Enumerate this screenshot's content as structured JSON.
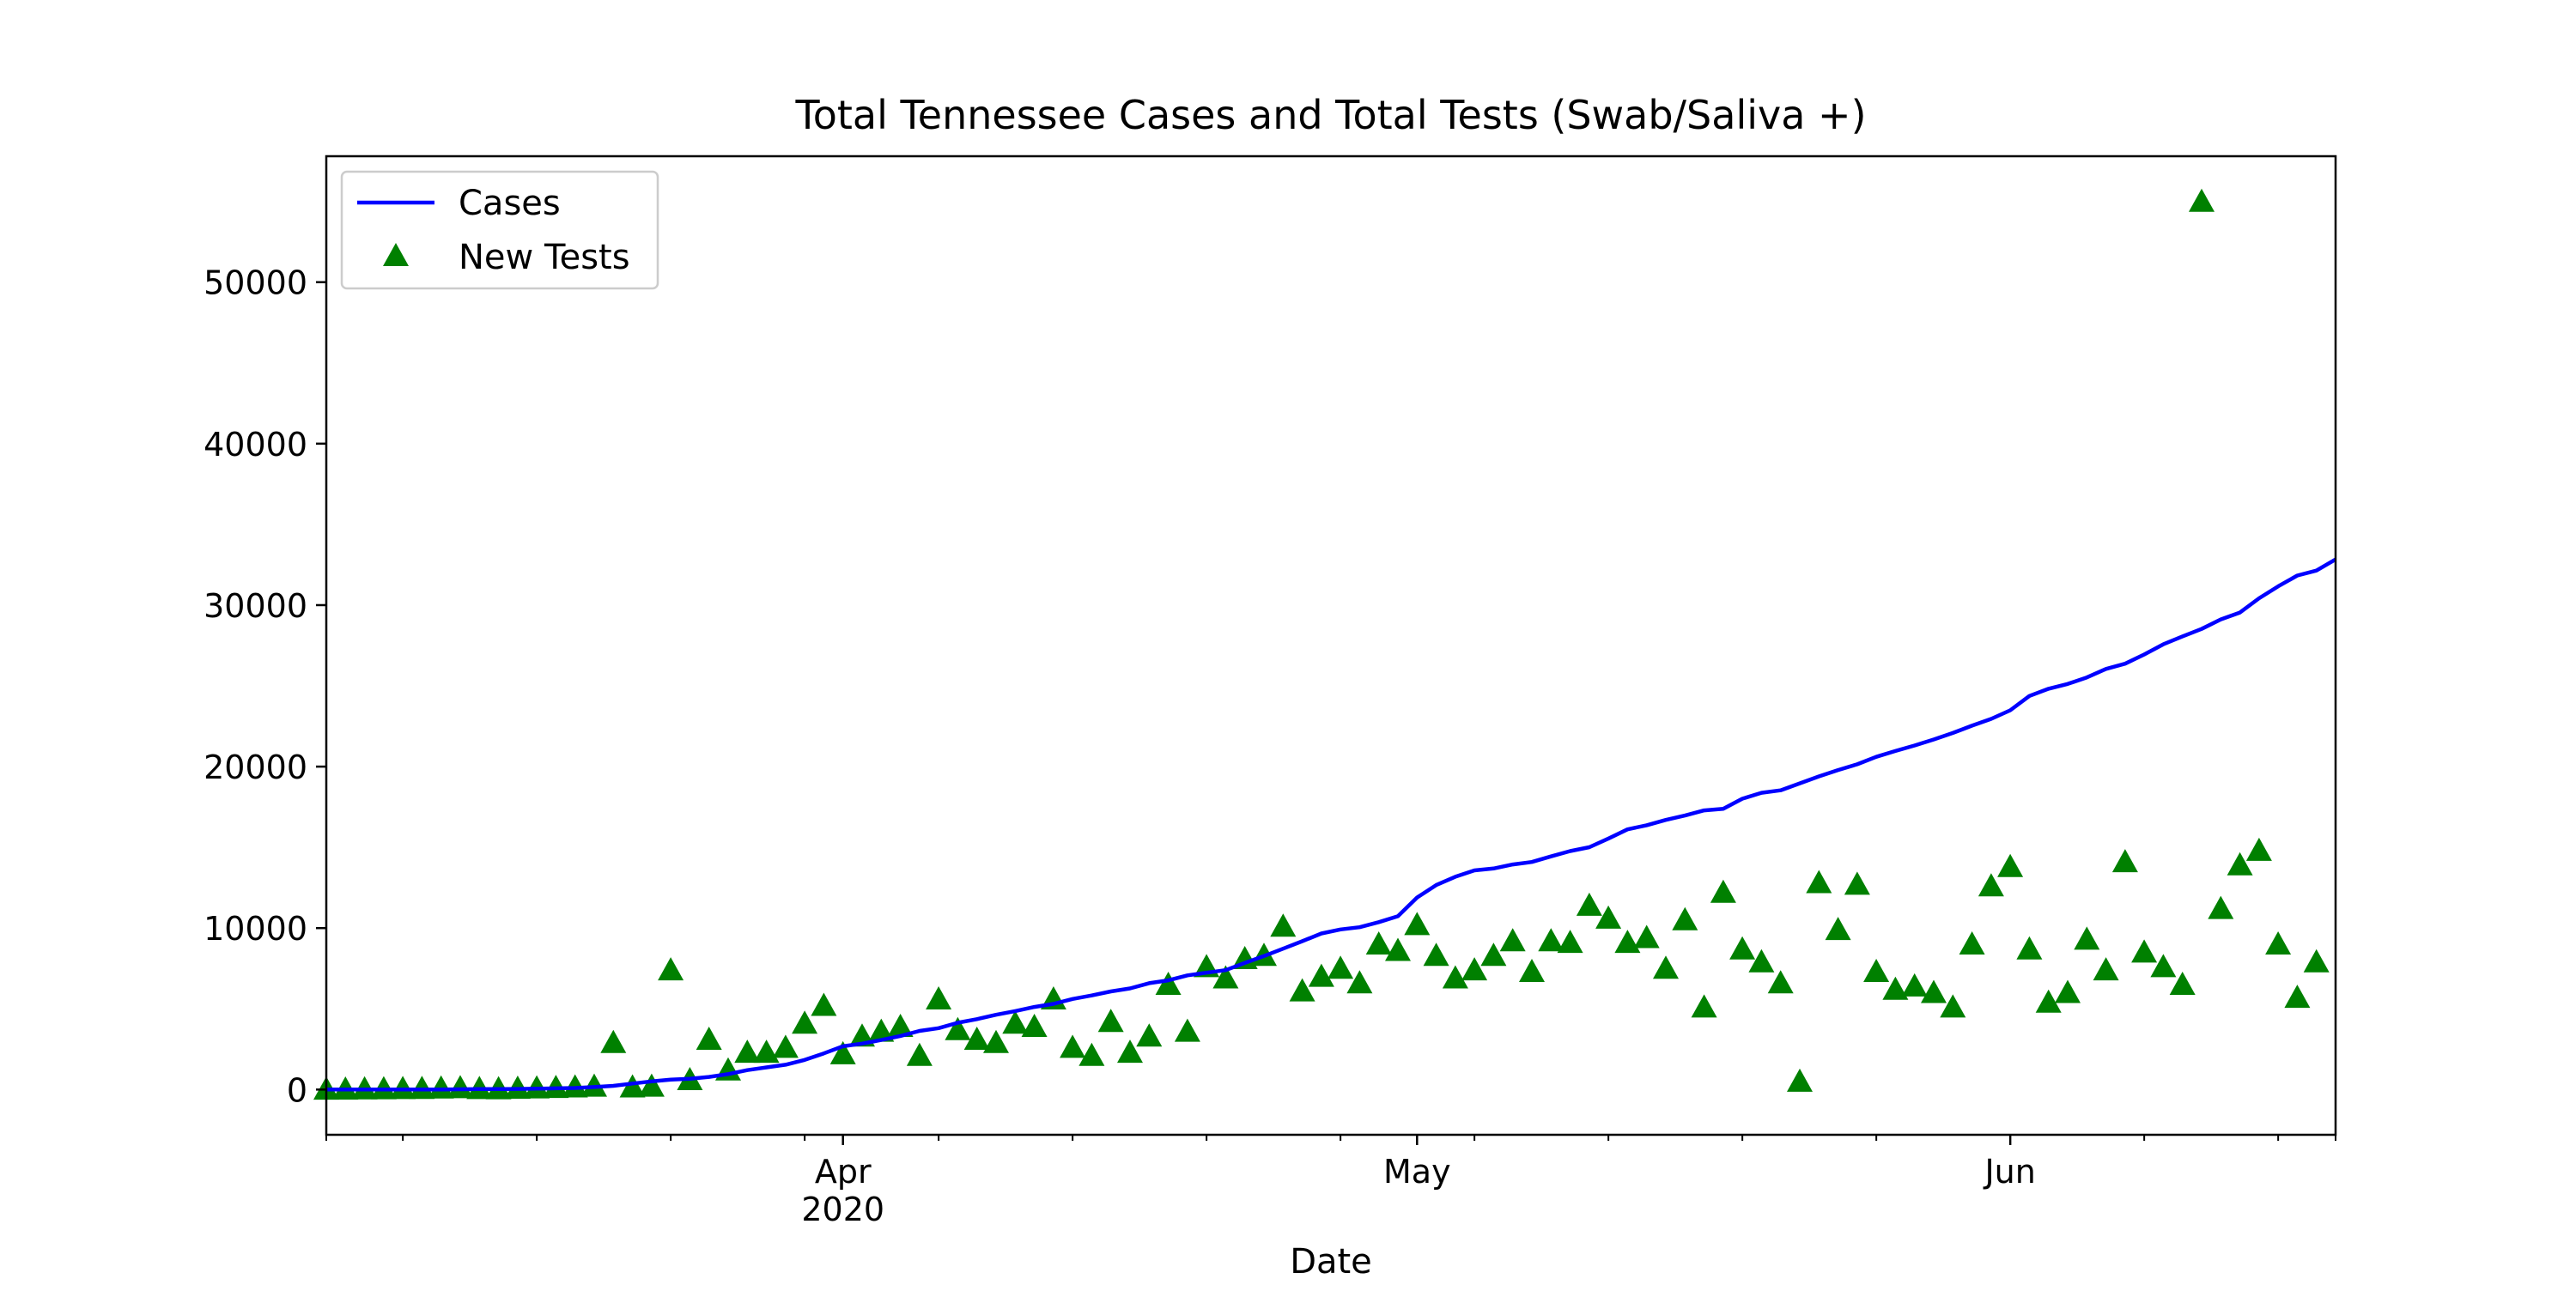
{
  "colors": {
    "cases_line": "#0000ff",
    "tests_marker": "#008000",
    "axes": "#000000",
    "background": "#ffffff"
  },
  "chart_data": {
    "type": "line",
    "title": "Total Tennessee Cases and Total Tests (Swab/Saliva +)",
    "xlabel": "Date",
    "ylabel": "",
    "x_range": [
      "2020-03-05",
      "2020-06-18"
    ],
    "ylim": [
      -2800,
      57800
    ],
    "grid": false,
    "legend_position": "top-left",
    "x_ticks": [
      {
        "date": "2020-04-01",
        "label": "Apr",
        "sublabel": "2020"
      },
      {
        "date": "2020-05-01",
        "label": "May",
        "sublabel": ""
      },
      {
        "date": "2020-06-01",
        "label": "Jun",
        "sublabel": ""
      }
    ],
    "x_minor_ticks": [
      "2020-03-05",
      "2020-03-09",
      "2020-03-16",
      "2020-03-23",
      "2020-03-30",
      "2020-04-06",
      "2020-04-13",
      "2020-04-20",
      "2020-04-27",
      "2020-05-04",
      "2020-05-11",
      "2020-05-18",
      "2020-05-25",
      "2020-06-08",
      "2020-06-15",
      "2020-06-18"
    ],
    "y_ticks": [
      0,
      10000,
      20000,
      30000,
      40000,
      50000
    ],
    "series": [
      {
        "name": "Cases",
        "kind": "line",
        "color": "#0000ff",
        "points": [
          [
            "2020-03-05",
            1
          ],
          [
            "2020-03-06",
            1
          ],
          [
            "2020-03-07",
            1
          ],
          [
            "2020-03-08",
            3
          ],
          [
            "2020-03-09",
            4
          ],
          [
            "2020-03-10",
            7
          ],
          [
            "2020-03-11",
            9
          ],
          [
            "2020-03-12",
            18
          ],
          [
            "2020-03-13",
            26
          ],
          [
            "2020-03-14",
            32
          ],
          [
            "2020-03-15",
            39
          ],
          [
            "2020-03-16",
            52
          ],
          [
            "2020-03-17",
            74
          ],
          [
            "2020-03-18",
            98
          ],
          [
            "2020-03-19",
            154
          ],
          [
            "2020-03-20",
            228
          ],
          [
            "2020-03-21",
            371
          ],
          [
            "2020-03-22",
            505
          ],
          [
            "2020-03-23",
            615
          ],
          [
            "2020-03-24",
            667
          ],
          [
            "2020-03-25",
            784
          ],
          [
            "2020-03-26",
            957
          ],
          [
            "2020-03-27",
            1203
          ],
          [
            "2020-03-28",
            1373
          ],
          [
            "2020-03-29",
            1537
          ],
          [
            "2020-03-30",
            1834
          ],
          [
            "2020-03-31",
            2239
          ],
          [
            "2020-04-01",
            2683
          ],
          [
            "2020-04-02",
            2845
          ],
          [
            "2020-04-03",
            3067
          ],
          [
            "2020-04-04",
            3321
          ],
          [
            "2020-04-05",
            3633
          ],
          [
            "2020-04-06",
            3802
          ],
          [
            "2020-04-07",
            4139
          ],
          [
            "2020-04-08",
            4362
          ],
          [
            "2020-04-09",
            4634
          ],
          [
            "2020-04-10",
            4862
          ],
          [
            "2020-04-11",
            5114
          ],
          [
            "2020-04-12",
            5308
          ],
          [
            "2020-04-13",
            5610
          ],
          [
            "2020-04-14",
            5827
          ],
          [
            "2020-04-15",
            6079
          ],
          [
            "2020-04-16",
            6263
          ],
          [
            "2020-04-17",
            6589
          ],
          [
            "2020-04-18",
            6762
          ],
          [
            "2020-04-19",
            7070
          ],
          [
            "2020-04-20",
            7238
          ],
          [
            "2020-04-21",
            7394
          ],
          [
            "2020-04-22",
            7842
          ],
          [
            "2020-04-23",
            8266
          ],
          [
            "2020-04-24",
            8726
          ],
          [
            "2020-04-25",
            9189
          ],
          [
            "2020-04-26",
            9667
          ],
          [
            "2020-04-27",
            9918
          ],
          [
            "2020-04-28",
            10052
          ],
          [
            "2020-04-29",
            10366
          ],
          [
            "2020-04-30",
            10735
          ],
          [
            "2020-05-01",
            11891
          ],
          [
            "2020-05-02",
            12661
          ],
          [
            "2020-05-03",
            13177
          ],
          [
            "2020-05-04",
            13571
          ],
          [
            "2020-05-05",
            13690
          ],
          [
            "2020-05-06",
            13938
          ],
          [
            "2020-05-07",
            14096
          ],
          [
            "2020-05-08",
            14441
          ],
          [
            "2020-05-09",
            14768
          ],
          [
            "2020-05-10",
            15007
          ],
          [
            "2020-05-11",
            15544
          ],
          [
            "2020-05-12",
            16111
          ],
          [
            "2020-05-13",
            16370
          ],
          [
            "2020-05-14",
            16699
          ],
          [
            "2020-05-15",
            16970
          ],
          [
            "2020-05-16",
            17288
          ],
          [
            "2020-05-17",
            17388
          ],
          [
            "2020-05-18",
            18011
          ],
          [
            "2020-05-19",
            18378
          ],
          [
            "2020-05-20",
            18532
          ],
          [
            "2020-05-21",
            18961
          ],
          [
            "2020-05-22",
            19394
          ],
          [
            "2020-05-23",
            19789
          ],
          [
            "2020-05-24",
            20145
          ],
          [
            "2020-05-25",
            20607
          ],
          [
            "2020-05-26",
            20965
          ],
          [
            "2020-05-27",
            21306
          ],
          [
            "2020-05-28",
            21679
          ],
          [
            "2020-05-29",
            22085
          ],
          [
            "2020-05-30",
            22536
          ],
          [
            "2020-05-31",
            22953
          ],
          [
            "2020-06-01",
            23487
          ],
          [
            "2020-06-02",
            24375
          ],
          [
            "2020-06-03",
            24822
          ],
          [
            "2020-06-04",
            25120
          ],
          [
            "2020-06-05",
            25520
          ],
          [
            "2020-06-06",
            26049
          ],
          [
            "2020-06-07",
            26373
          ],
          [
            "2020-06-08",
            26944
          ],
          [
            "2020-06-09",
            27575
          ],
          [
            "2020-06-10",
            28061
          ],
          [
            "2020-06-11",
            28527
          ],
          [
            "2020-06-12",
            29118
          ],
          [
            "2020-06-13",
            29541
          ],
          [
            "2020-06-14",
            30423
          ],
          [
            "2020-06-15",
            31160
          ],
          [
            "2020-06-16",
            31830
          ],
          [
            "2020-06-17",
            32143
          ],
          [
            "2020-06-18",
            32831
          ]
        ]
      },
      {
        "name": "New Tests",
        "kind": "scatter",
        "marker": "triangle-up",
        "color": "#008000",
        "points": [
          [
            "2020-03-05",
            10
          ],
          [
            "2020-03-06",
            20
          ],
          [
            "2020-03-07",
            30
          ],
          [
            "2020-03-08",
            40
          ],
          [
            "2020-03-09",
            50
          ],
          [
            "2020-03-10",
            60
          ],
          [
            "2020-03-11",
            80
          ],
          [
            "2020-03-12",
            100
          ],
          [
            "2020-03-13",
            50
          ],
          [
            "2020-03-14",
            40
          ],
          [
            "2020-03-15",
            70
          ],
          [
            "2020-03-16",
            90
          ],
          [
            "2020-03-17",
            120
          ],
          [
            "2020-03-18",
            150
          ],
          [
            "2020-03-19",
            200
          ],
          [
            "2020-03-20",
            2900
          ],
          [
            "2020-03-21",
            150
          ],
          [
            "2020-03-22",
            200
          ],
          [
            "2020-03-23",
            7400
          ],
          [
            "2020-03-24",
            600
          ],
          [
            "2020-03-25",
            3100
          ],
          [
            "2020-03-26",
            1200
          ],
          [
            "2020-03-27",
            2300
          ],
          [
            "2020-03-28",
            2300
          ],
          [
            "2020-03-29",
            2600
          ],
          [
            "2020-03-30",
            4100
          ],
          [
            "2020-03-31",
            5200
          ],
          [
            "2020-04-01",
            2200
          ],
          [
            "2020-04-02",
            3300
          ],
          [
            "2020-04-03",
            3600
          ],
          [
            "2020-04-04",
            3900
          ],
          [
            "2020-04-05",
            2100
          ],
          [
            "2020-04-06",
            5600
          ],
          [
            "2020-04-07",
            3700
          ],
          [
            "2020-04-08",
            3100
          ],
          [
            "2020-04-09",
            2900
          ],
          [
            "2020-04-10",
            4100
          ],
          [
            "2020-04-11",
            3900
          ],
          [
            "2020-04-12",
            5600
          ],
          [
            "2020-04-13",
            2600
          ],
          [
            "2020-04-14",
            2100
          ],
          [
            "2020-04-15",
            4200
          ],
          [
            "2020-04-16",
            2300
          ],
          [
            "2020-04-17",
            3300
          ],
          [
            "2020-04-18",
            6500
          ],
          [
            "2020-04-19",
            3600
          ],
          [
            "2020-04-20",
            7600
          ],
          [
            "2020-04-21",
            6900
          ],
          [
            "2020-04-22",
            8100
          ],
          [
            "2020-04-23",
            8300
          ],
          [
            "2020-04-24",
            10100
          ],
          [
            "2020-04-25",
            6100
          ],
          [
            "2020-04-26",
            7000
          ],
          [
            "2020-04-27",
            7500
          ],
          [
            "2020-04-28",
            6600
          ],
          [
            "2020-04-29",
            9000
          ],
          [
            "2020-04-30",
            8600
          ],
          [
            "2020-05-01",
            10200
          ],
          [
            "2020-05-02",
            8300
          ],
          [
            "2020-05-03",
            6900
          ],
          [
            "2020-05-04",
            7400
          ],
          [
            "2020-05-05",
            8300
          ],
          [
            "2020-05-06",
            9200
          ],
          [
            "2020-05-07",
            7300
          ],
          [
            "2020-05-08",
            9200
          ],
          [
            "2020-05-09",
            9100
          ],
          [
            "2020-05-10",
            11400
          ],
          [
            "2020-05-11",
            10600
          ],
          [
            "2020-05-12",
            9100
          ],
          [
            "2020-05-13",
            9400
          ],
          [
            "2020-05-14",
            7500
          ],
          [
            "2020-05-15",
            10500
          ],
          [
            "2020-05-16",
            5100
          ],
          [
            "2020-05-17",
            12200
          ],
          [
            "2020-05-18",
            8700
          ],
          [
            "2020-05-19",
            7900
          ],
          [
            "2020-05-20",
            6600
          ],
          [
            "2020-05-21",
            500
          ],
          [
            "2020-05-22",
            12800
          ],
          [
            "2020-05-23",
            9900
          ],
          [
            "2020-05-24",
            12700
          ],
          [
            "2020-05-25",
            7300
          ],
          [
            "2020-05-26",
            6200
          ],
          [
            "2020-05-27",
            6400
          ],
          [
            "2020-05-28",
            6000
          ],
          [
            "2020-05-29",
            5100
          ],
          [
            "2020-05-30",
            9000
          ],
          [
            "2020-05-31",
            12600
          ],
          [
            "2020-06-01",
            13800
          ],
          [
            "2020-06-02",
            8700
          ],
          [
            "2020-06-03",
            5400
          ],
          [
            "2020-06-04",
            6000
          ],
          [
            "2020-06-05",
            9300
          ],
          [
            "2020-06-06",
            7400
          ],
          [
            "2020-06-07",
            14100
          ],
          [
            "2020-06-08",
            8500
          ],
          [
            "2020-06-09",
            7600
          ],
          [
            "2020-06-10",
            6500
          ],
          [
            "2020-06-11",
            55000
          ],
          [
            "2020-06-12",
            11200
          ],
          [
            "2020-06-13",
            13900
          ],
          [
            "2020-06-14",
            14800
          ],
          [
            "2020-06-15",
            9000
          ],
          [
            "2020-06-16",
            5700
          ],
          [
            "2020-06-17",
            7900
          ]
        ]
      }
    ]
  }
}
